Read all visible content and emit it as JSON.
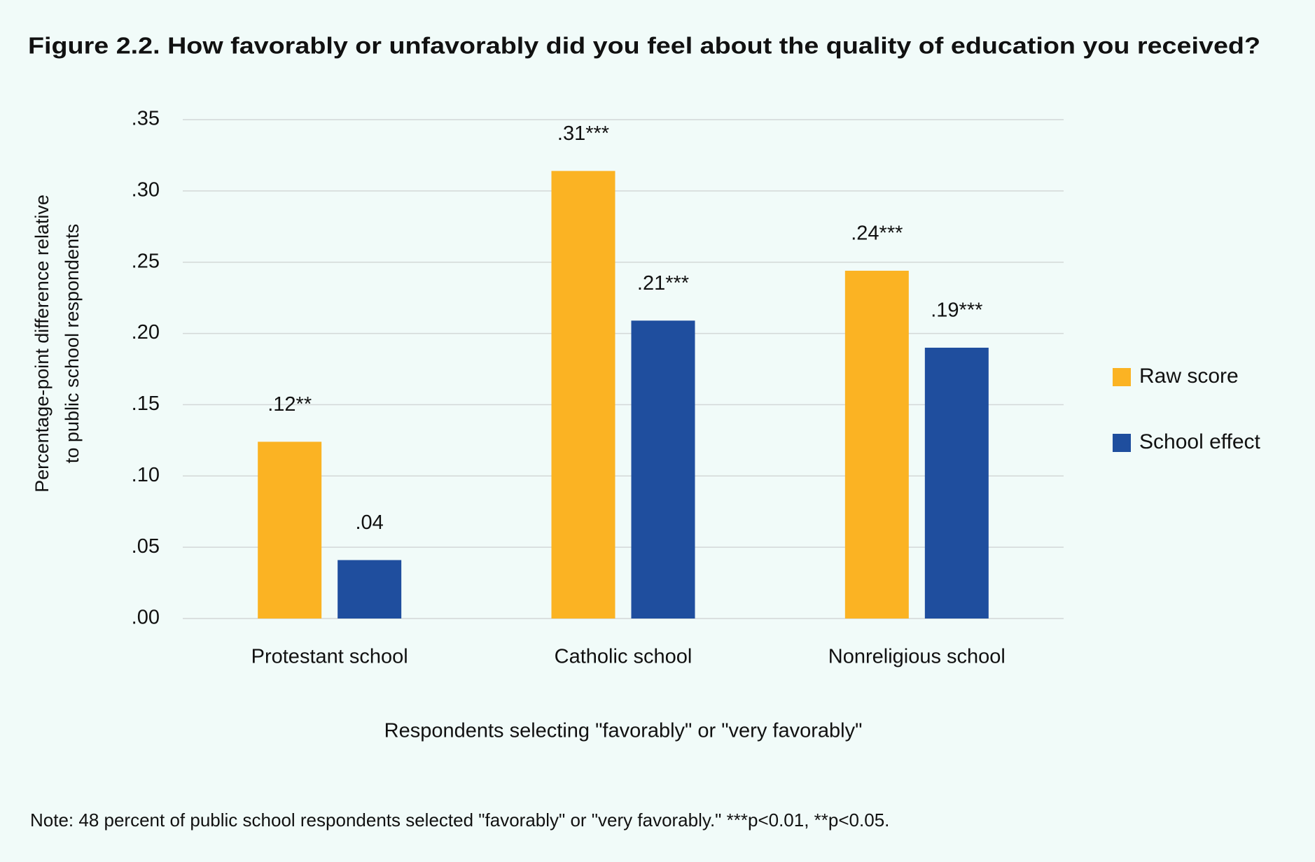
{
  "chart_data": {
    "type": "bar",
    "title": "Figure 2.2. How favorably or unfavorably did you feel about the quality of education you received?",
    "y_label": [
      "Percentage-point difference relative",
      "to public school respondents"
    ],
    "x_label": "Respondents selecting \"favorably\" or \"very favorably\"",
    "note": "Note: 48 percent of public school respondents selected \"favorably\" or \"very favorably.\" ***p<0.01, **p<0.05.",
    "categories": [
      "Protestant school",
      "Catholic school",
      "Nonreligious school"
    ],
    "series": [
      {
        "name": "Raw score",
        "color": "#fbb323",
        "values": [
          0.124,
          0.314,
          0.244
        ],
        "value_labels": [
          ".12**",
          ".31***",
          ".24***"
        ]
      },
      {
        "name": "School effect",
        "color": "#1f4e9e",
        "values": [
          0.041,
          0.209,
          0.19
        ],
        "value_labels": [
          ".04",
          ".21***",
          ".19***"
        ]
      }
    ],
    "ylim": [
      0,
      0.35
    ],
    "yticks": [
      {
        "value": 0,
        "label": ".00"
      },
      {
        "value": 0.05,
        "label": ".05"
      },
      {
        "value": 0.1,
        "label": ".10"
      },
      {
        "value": 0.15,
        "label": ".15"
      },
      {
        "value": 0.2,
        "label": ".20"
      },
      {
        "value": 0.25,
        "label": ".25"
      },
      {
        "value": 0.3,
        "label": ".30"
      },
      {
        "value": 0.35,
        "label": ".35"
      }
    ],
    "grid": true,
    "legend": "right"
  }
}
